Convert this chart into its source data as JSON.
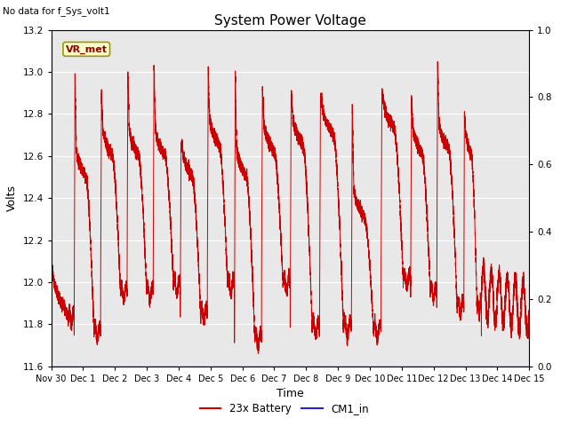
{
  "title": "System Power Voltage",
  "no_data_text": "No data for f_Sys_volt1",
  "xlabel": "Time",
  "ylabel": "Volts",
  "ylim_left": [
    11.6,
    13.2
  ],
  "ylim_right": [
    0.0,
    1.0
  ],
  "yticks_left": [
    11.6,
    11.8,
    12.0,
    12.2,
    12.4,
    12.6,
    12.8,
    13.0,
    13.2
  ],
  "yticks_right": [
    0.0,
    0.2,
    0.4,
    0.6,
    0.8,
    1.0
  ],
  "xtick_labels": [
    "Nov 30",
    "Dec 1",
    "Dec 2",
    "Dec 3",
    "Dec 4",
    "Dec 5",
    "Dec 6",
    "Dec 7",
    "Dec 8",
    "Dec 9",
    "Dec 10",
    "Dec 11",
    "Dec 12",
    "Dec 13",
    "Dec 14",
    "Dec 15"
  ],
  "line_color_battery": "#cc0000",
  "line_color_cm1": "#2222cc",
  "legend_labels": [
    "23x Battery",
    "CM1_in"
  ],
  "vr_met_label": "VR_met",
  "bg_color": "#e8e8e8",
  "title_fontsize": 11,
  "axis_label_fontsize": 9,
  "tick_fontsize": 7.5,
  "no_data_fontsize": 7.5
}
